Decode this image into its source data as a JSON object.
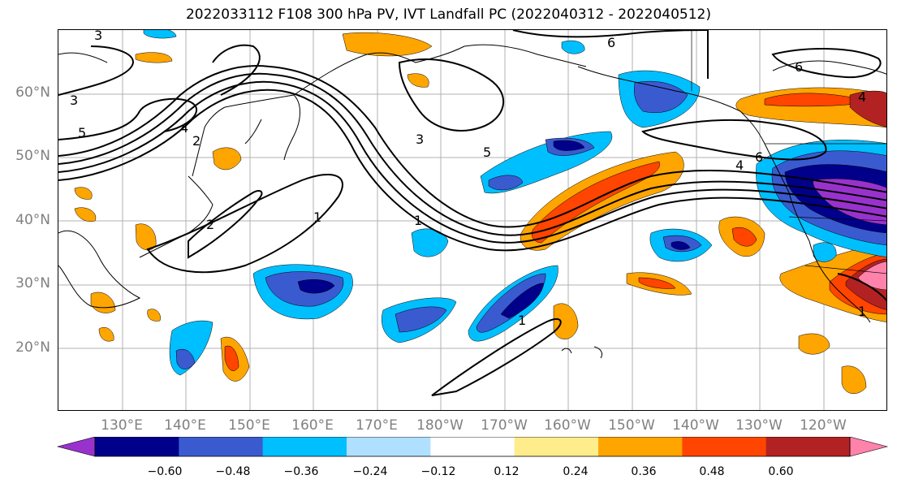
{
  "title": "2022033112 F108 300 hPa PV, IVT Landfall PC (2022040312 - 2022040512)",
  "lat_labels": [
    "60°N",
    "50°N",
    "40°N",
    "30°N",
    "20°N"
  ],
  "lon_labels": [
    "130°E",
    "140°E",
    "150°E",
    "160°E",
    "170°E",
    "180°W",
    "170°W",
    "160°W",
    "150°W",
    "140°W",
    "130°W",
    "120°W"
  ],
  "colorbar": {
    "ticks": [
      "−0.60",
      "−0.48",
      "−0.36",
      "−0.24",
      "−0.12",
      "0.12",
      "0.24",
      "0.36",
      "0.48",
      "0.60"
    ],
    "colors": [
      "#9932cc",
      "#00008b",
      "#3a5bd0",
      "#00bfff",
      "#b0e0ff",
      "#ffffff",
      "#ffec8b",
      "#ffa500",
      "#ff4500",
      "#b22222",
      "#ff82ab"
    ]
  },
  "contour_labels": [
    "3",
    "3",
    "5",
    "4",
    "2",
    "1",
    "2",
    "3",
    "5",
    "1",
    "6",
    "6",
    "4",
    "6",
    "1",
    "1",
    "4"
  ]
}
